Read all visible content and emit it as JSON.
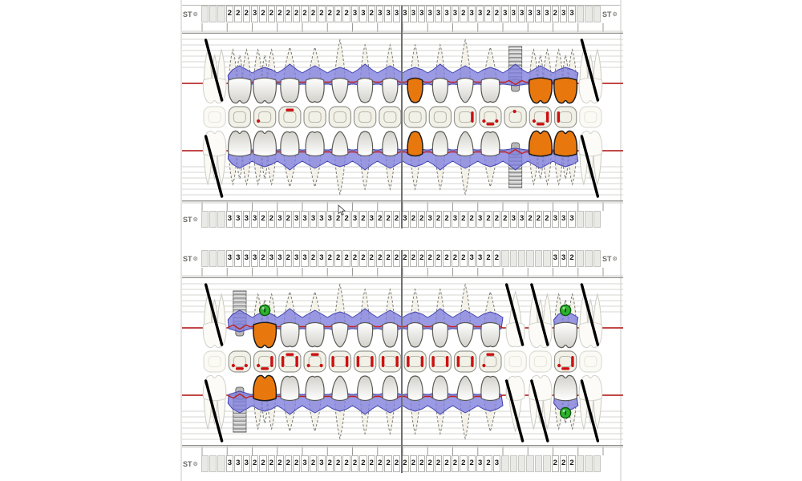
{
  "labels": {
    "st": "ST"
  },
  "icons": {
    "gear": "⚙"
  },
  "colors": {
    "band": "#7d7dde",
    "band_stroke": "#4343ae",
    "gingiva_line": "#c22222",
    "crown_restoration": "#e8780d",
    "implant": "#c6c6c6",
    "marker_green": "#2eb22e",
    "missing_mark": "#000000",
    "red_mark": "#cc1111"
  },
  "maxillary": {
    "st_top": {
      "left": [
        "",
        "",
        "",
        "2",
        "2",
        "2",
        "3",
        "2",
        "2",
        "2",
        "2",
        "2",
        "2",
        "2",
        "2",
        "2",
        "2",
        "2",
        "3",
        "3",
        "2",
        "3",
        "3",
        "3"
      ],
      "right": [
        "3",
        "3",
        "3",
        "3",
        "3",
        "3",
        "3",
        "2",
        "3",
        "3",
        "2",
        "2",
        "3",
        "3",
        "3",
        "3",
        "3",
        "3",
        "2",
        "3",
        "3",
        "",
        "",
        ""
      ]
    },
    "st_bottom": {
      "left": [
        "",
        "",
        "",
        "3",
        "3",
        "3",
        "3",
        "2",
        "2",
        "3",
        "2",
        "3",
        "3",
        "3",
        "3",
        "3",
        "2",
        "2",
        "3",
        "2",
        "3",
        "2",
        "2",
        "2"
      ],
      "right": [
        "3",
        "2",
        "2",
        "3",
        "2",
        "2",
        "3",
        "2",
        "2",
        "3",
        "2",
        "2",
        "2",
        "3",
        "3",
        "2",
        "2",
        "2",
        "3",
        "3",
        "3",
        "",
        "",
        ""
      ]
    },
    "teeth": [
      {
        "type": "molar",
        "status": "missing"
      },
      {
        "type": "molar",
        "status": "normal"
      },
      {
        "type": "molar",
        "status": "normal"
      },
      {
        "type": "premolar",
        "status": "normal"
      },
      {
        "type": "premolar",
        "status": "normal"
      },
      {
        "type": "canine",
        "status": "normal"
      },
      {
        "type": "incisor",
        "status": "normal"
      },
      {
        "type": "incisor",
        "status": "normal"
      },
      {
        "type": "incisor",
        "status": "crown"
      },
      {
        "type": "incisor",
        "status": "normal"
      },
      {
        "type": "canine",
        "status": "normal"
      },
      {
        "type": "premolar",
        "status": "normal"
      },
      {
        "type": "premolar",
        "status": "implant"
      },
      {
        "type": "molar",
        "status": "crown"
      },
      {
        "type": "molar",
        "status": "crown"
      },
      {
        "type": "molar",
        "status": "missing"
      }
    ],
    "occlusal_marks": [
      [],
      [],
      [
        "DL"
      ],
      [
        "T"
      ],
      [],
      [],
      [],
      [],
      [],
      [],
      [
        "R"
      ],
      [
        "DL",
        "B",
        "DR"
      ],
      [
        "DT"
      ],
      [
        "DL",
        "B",
        "R"
      ],
      [
        "L"
      ],
      []
    ]
  },
  "mandibular": {
    "st_top": {
      "left": [
        "",
        "",
        "",
        "3",
        "3",
        "3",
        "3",
        "2",
        "3",
        "3",
        "2",
        "3",
        "3",
        "2",
        "3",
        "2",
        "2",
        "2",
        "2",
        "2",
        "2",
        "2",
        "2",
        "2"
      ],
      "right": [
        "2",
        "2",
        "2",
        "2",
        "2",
        "2",
        "2",
        "2",
        "3",
        "3",
        "2",
        "2",
        "",
        "",
        "",
        "",
        "",
        "",
        "3",
        "3",
        "2",
        "",
        "",
        ""
      ]
    },
    "st_bottom": {
      "left": [
        "",
        "",
        "",
        "3",
        "3",
        "3",
        "2",
        "2",
        "2",
        "2",
        "2",
        "2",
        "3",
        "2",
        "3",
        "2",
        "2",
        "2",
        "2",
        "2",
        "2",
        "2",
        "2",
        "2"
      ],
      "right": [
        "2",
        "2",
        "2",
        "2",
        "2",
        "2",
        "2",
        "2",
        "2",
        "3",
        "2",
        "3",
        "",
        "",
        "",
        "",
        "",
        "",
        "2",
        "2",
        "2",
        "",
        "",
        ""
      ]
    },
    "teeth": [
      {
        "type": "molar",
        "status": "missing"
      },
      {
        "type": "premolar",
        "status": "implant"
      },
      {
        "type": "molar",
        "status": "crown",
        "marker_up": true
      },
      {
        "type": "premolar",
        "status": "normal"
      },
      {
        "type": "premolar",
        "status": "normal"
      },
      {
        "type": "canine",
        "status": "normal"
      },
      {
        "type": "incisor",
        "status": "normal"
      },
      {
        "type": "incisor",
        "status": "normal"
      },
      {
        "type": "incisor",
        "status": "normal"
      },
      {
        "type": "incisor",
        "status": "normal"
      },
      {
        "type": "canine",
        "status": "normal"
      },
      {
        "type": "premolar",
        "status": "normal"
      },
      {
        "type": "premolar",
        "status": "missing"
      },
      {
        "type": "molar",
        "status": "missing"
      },
      {
        "type": "molar",
        "status": "normal",
        "marker_up": true,
        "marker_down": true
      },
      {
        "type": "molar",
        "status": "missing"
      }
    ],
    "occlusal_marks": [
      [],
      [
        "DL",
        "B",
        "DR"
      ],
      [
        "DL",
        "B",
        "R"
      ],
      [
        "L",
        "T",
        "R"
      ],
      [
        "DL",
        "T",
        "DR"
      ],
      [
        "L",
        "R"
      ],
      [
        "L",
        "R"
      ],
      [
        "L",
        "R"
      ],
      [
        "L",
        "R"
      ],
      [
        "L",
        "R"
      ],
      [
        "L",
        "R"
      ],
      [
        "DL",
        "T"
      ],
      [],
      [],
      [
        "DL",
        "B",
        "R"
      ],
      []
    ]
  }
}
